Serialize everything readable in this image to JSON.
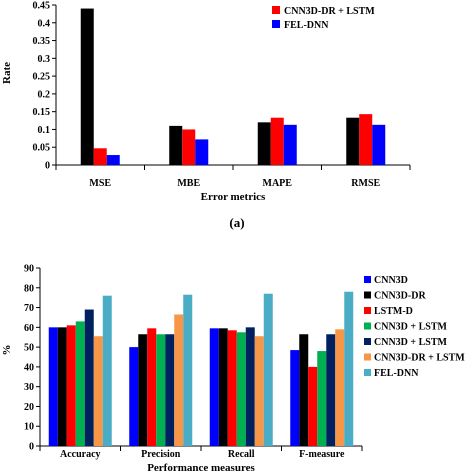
{
  "chart_data": [
    {
      "type": "bar",
      "panel_label": "(a)",
      "xlabel": "Error metrics",
      "ylabel": "Rate",
      "categories": [
        "MSE",
        "MBE",
        "MAPE",
        "RMSE"
      ],
      "ylim": [
        0,
        0.45
      ],
      "yticks": [
        0,
        0.05,
        0.1,
        0.15,
        0.2,
        0.25,
        0.3,
        0.35,
        0.4,
        0.45
      ],
      "ytick_labels": [
        "0",
        "0.05",
        "0.1",
        "0.15",
        "0.2",
        "0.25",
        "0.3",
        "0.35",
        "0.4",
        "0.45"
      ],
      "legend_position": "top-right",
      "grid": false,
      "series": [
        {
          "name": "",
          "color": "#000000",
          "values": [
            0.44,
            0.11,
            0.12,
            0.133
          ],
          "in_legend": false
        },
        {
          "name": "CNN3D-DR + LSTM",
          "color": "#ff0000",
          "values": [
            0.047,
            0.1,
            0.133,
            0.143
          ],
          "in_legend": true
        },
        {
          "name": "FEL-DNN",
          "color": "#0000ff",
          "values": [
            0.028,
            0.072,
            0.113,
            0.113
          ],
          "in_legend": true
        }
      ]
    },
    {
      "type": "bar",
      "xlabel": "Performance measures",
      "ylabel": "%",
      "categories": [
        "Accuracy",
        "Precision",
        "Recall",
        "F-measure"
      ],
      "ylim": [
        0,
        90
      ],
      "yticks": [
        0,
        10,
        20,
        30,
        40,
        50,
        60,
        70,
        80,
        90
      ],
      "ytick_labels": [
        "0",
        "10",
        "20",
        "30",
        "40",
        "50",
        "60",
        "70",
        "80",
        "90"
      ],
      "legend_position": "right",
      "grid": false,
      "series": [
        {
          "name": "CNN3D",
          "color": "#0000ff",
          "values": [
            60,
            50,
            59.5,
            48.5
          ]
        },
        {
          "name": "CNN3D-DR",
          "color": "#000000",
          "values": [
            60,
            56.5,
            59.5,
            56.5
          ]
        },
        {
          "name": "LSTM-D",
          "color": "#ff0000",
          "values": [
            61,
            59.5,
            58.5,
            40
          ]
        },
        {
          "name": "CNN3D + LSTM",
          "color": "#00b050",
          "values": [
            63,
            56.5,
            57.5,
            48
          ]
        },
        {
          "name": "CNN3D + LSTM",
          "color": "#002060",
          "values": [
            69,
            56.5,
            60,
            56.5
          ]
        },
        {
          "name": "CNN3D-DR + LSTM",
          "color": "#f79646",
          "values": [
            55.5,
            66.5,
            55.5,
            59
          ]
        },
        {
          "name": "FEL-DNN",
          "color": "#4bacc6",
          "values": [
            76,
            76.5,
            77,
            78
          ]
        }
      ]
    }
  ]
}
